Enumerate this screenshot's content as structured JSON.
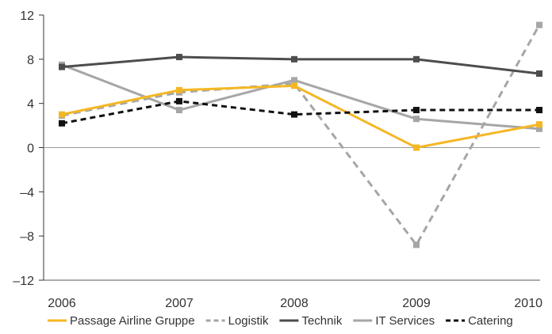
{
  "chart_data": {
    "type": "line",
    "x": [
      "2006",
      "2007",
      "2008",
      "2009",
      "2010"
    ],
    "ylim": [
      -12,
      12
    ],
    "yticks": [
      12,
      8,
      4,
      0,
      -4,
      -8,
      -12
    ],
    "ytick_labels": [
      "12",
      "8",
      "4",
      "0",
      "–4",
      "–8",
      "–12"
    ],
    "grid": false,
    "legend_position": "bottom",
    "series": [
      {
        "name": "Passage Airline Gruppe",
        "values": [
          3.0,
          5.2,
          5.6,
          0.0,
          2.1
        ],
        "color": "#f4b724",
        "dash": "solid",
        "marker": "square"
      },
      {
        "name": "Logistik",
        "values": [
          2.9,
          5.0,
          5.8,
          -8.8,
          11.1
        ],
        "color": "#a6a6a6",
        "dash": "dashed",
        "marker": "square"
      },
      {
        "name": "Technik",
        "values": [
          7.3,
          8.2,
          8.0,
          8.0,
          6.7
        ],
        "color": "#4d4d4d",
        "dash": "solid",
        "marker": "square"
      },
      {
        "name": "IT Services",
        "values": [
          7.5,
          3.4,
          6.1,
          2.6,
          1.7
        ],
        "color": "#a6a6a6",
        "dash": "solid",
        "marker": "square"
      },
      {
        "name": "Catering",
        "values": [
          2.2,
          4.2,
          3.0,
          3.4,
          3.4
        ],
        "color": "#111111",
        "dash": "dashed",
        "marker": "square"
      }
    ]
  }
}
